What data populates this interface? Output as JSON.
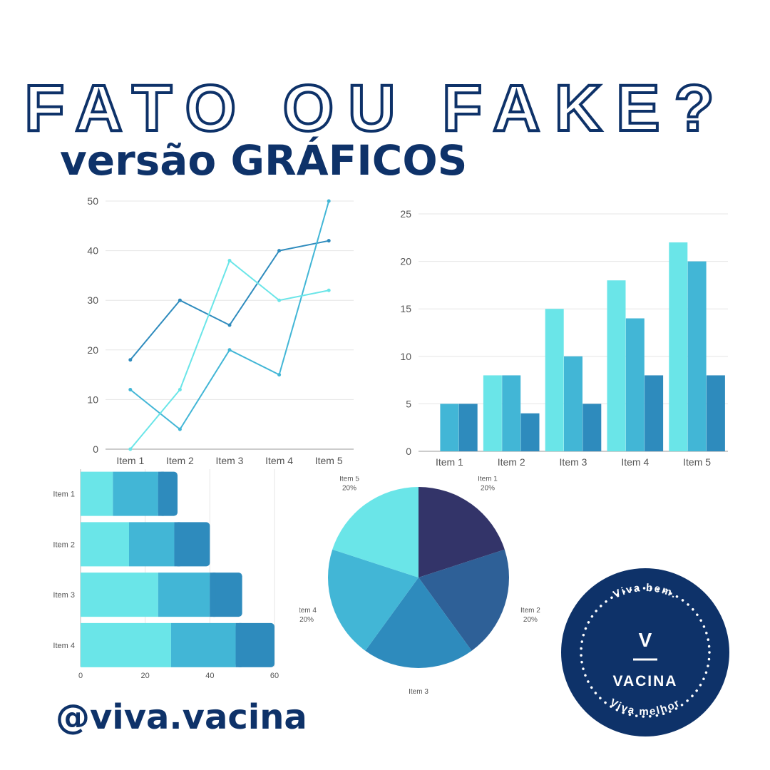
{
  "header": {
    "title": "FATO OU FAKE?",
    "subtitle": "versão GRÁFICOS"
  },
  "footer": {
    "handle": "@viva.vacina"
  },
  "badge": {
    "top_text": "Viva bem.",
    "letter": "V",
    "name": "VACINA",
    "bottom_text": "Viva melhor",
    "color": "#0e3269"
  },
  "colors": {
    "navy": "#0e3269",
    "light_cyan": "#6ae5e8",
    "cyan": "#42b6d6",
    "blue": "#2e8bbd",
    "royal": "#2e6097",
    "dark": "#333469"
  },
  "chart_data": [
    {
      "type": "line",
      "categories": [
        "Item 1",
        "Item 2",
        "Item 3",
        "Item 4",
        "Item 5"
      ],
      "ylim": [
        0,
        50
      ],
      "yticks": [
        0,
        10,
        20,
        30,
        40,
        50
      ],
      "grid": true,
      "series": [
        {
          "values": [
            18,
            30,
            25,
            40,
            42
          ],
          "color": "#2e8bbd"
        },
        {
          "values": [
            12,
            4,
            20,
            15,
            50
          ],
          "color": "#42b6d6"
        },
        {
          "values": [
            0,
            12,
            38,
            30,
            32
          ],
          "color": "#6ae5e8"
        }
      ]
    },
    {
      "type": "bar",
      "categories": [
        "Item 1",
        "Item 2",
        "Item 3",
        "Item 4",
        "Item 5"
      ],
      "ylim": [
        0,
        25
      ],
      "yticks": [
        0,
        5,
        10,
        15,
        20,
        25
      ],
      "grid": true,
      "series": [
        {
          "values": [
            0,
            8,
            15,
            18,
            22
          ],
          "color": "#6ae5e8"
        },
        {
          "values": [
            5,
            8,
            10,
            14,
            20
          ],
          "color": "#42b6d6"
        },
        {
          "values": [
            5,
            4,
            5,
            8,
            8
          ],
          "color": "#2e8bbd"
        }
      ]
    },
    {
      "type": "bar",
      "orientation": "horizontal",
      "stacked": true,
      "categories": [
        "Item 1",
        "Item 2",
        "Item 3",
        "Item 4"
      ],
      "xlim": [
        0,
        60
      ],
      "xticks": [
        0,
        20,
        40,
        60
      ],
      "series": [
        {
          "values": [
            10,
            15,
            24,
            28
          ],
          "color": "#6ae5e8"
        },
        {
          "values": [
            14,
            14,
            16,
            20
          ],
          "color": "#42b6d6"
        },
        {
          "values": [
            6,
            11,
            10,
            12
          ],
          "color": "#2e8bbd"
        }
      ]
    },
    {
      "type": "pie",
      "slices": [
        {
          "label": "Item 1",
          "pct_label": "20%",
          "value": 20,
          "color": "#333469"
        },
        {
          "label": "Item 2",
          "pct_label": "20%",
          "value": 20,
          "color": "#2e6097"
        },
        {
          "label": "Item 3",
          "pct_label": "20%",
          "value": 20,
          "color": "#2e8bbd"
        },
        {
          "label": "Item 4",
          "pct_label": "20%",
          "value": 20,
          "color": "#42b6d6"
        },
        {
          "label": "Item 5",
          "pct_label": "20%",
          "value": 20,
          "color": "#6ae5e8"
        }
      ]
    }
  ]
}
